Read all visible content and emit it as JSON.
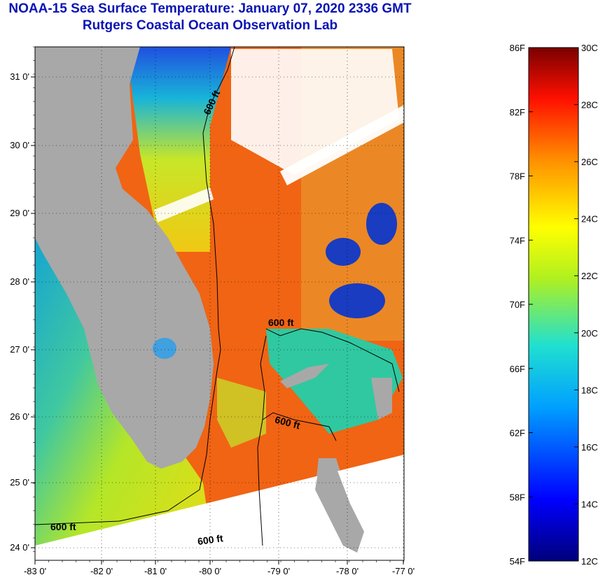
{
  "header": {
    "title": "NOAA-15 Sea Surface Temperature:  January 07, 2020 2336 GMT",
    "subtitle": "Rutgers Coastal Ocean Observation Lab"
  },
  "map": {
    "lon_ticks": [
      "-83 0'",
      "-82 0'",
      "-81 0'",
      "-80 0'",
      "-79 0'",
      "-78 0'",
      "-77 0'"
    ],
    "lat_ticks": [
      "31 0'",
      "30 0'",
      "29 0'",
      "28 0'",
      "27 0'",
      "26 0'",
      "25 0'",
      "24 0'"
    ],
    "contour_label": "600 ft",
    "colors": {
      "land": "#a8a8a8",
      "no_data": "#ffffff",
      "warm": "#f05a14",
      "cool": "#e6e61e",
      "cold": "#1432c8"
    }
  },
  "colorbar": {
    "fahrenheit": [
      "86F",
      "82F",
      "78F",
      "74F",
      "70F",
      "66F",
      "62F",
      "58F",
      "54F"
    ],
    "celsius": [
      "30C",
      "28C",
      "26C",
      "24C",
      "22C",
      "20C",
      "18C",
      "16C",
      "14C",
      "12C"
    ]
  }
}
